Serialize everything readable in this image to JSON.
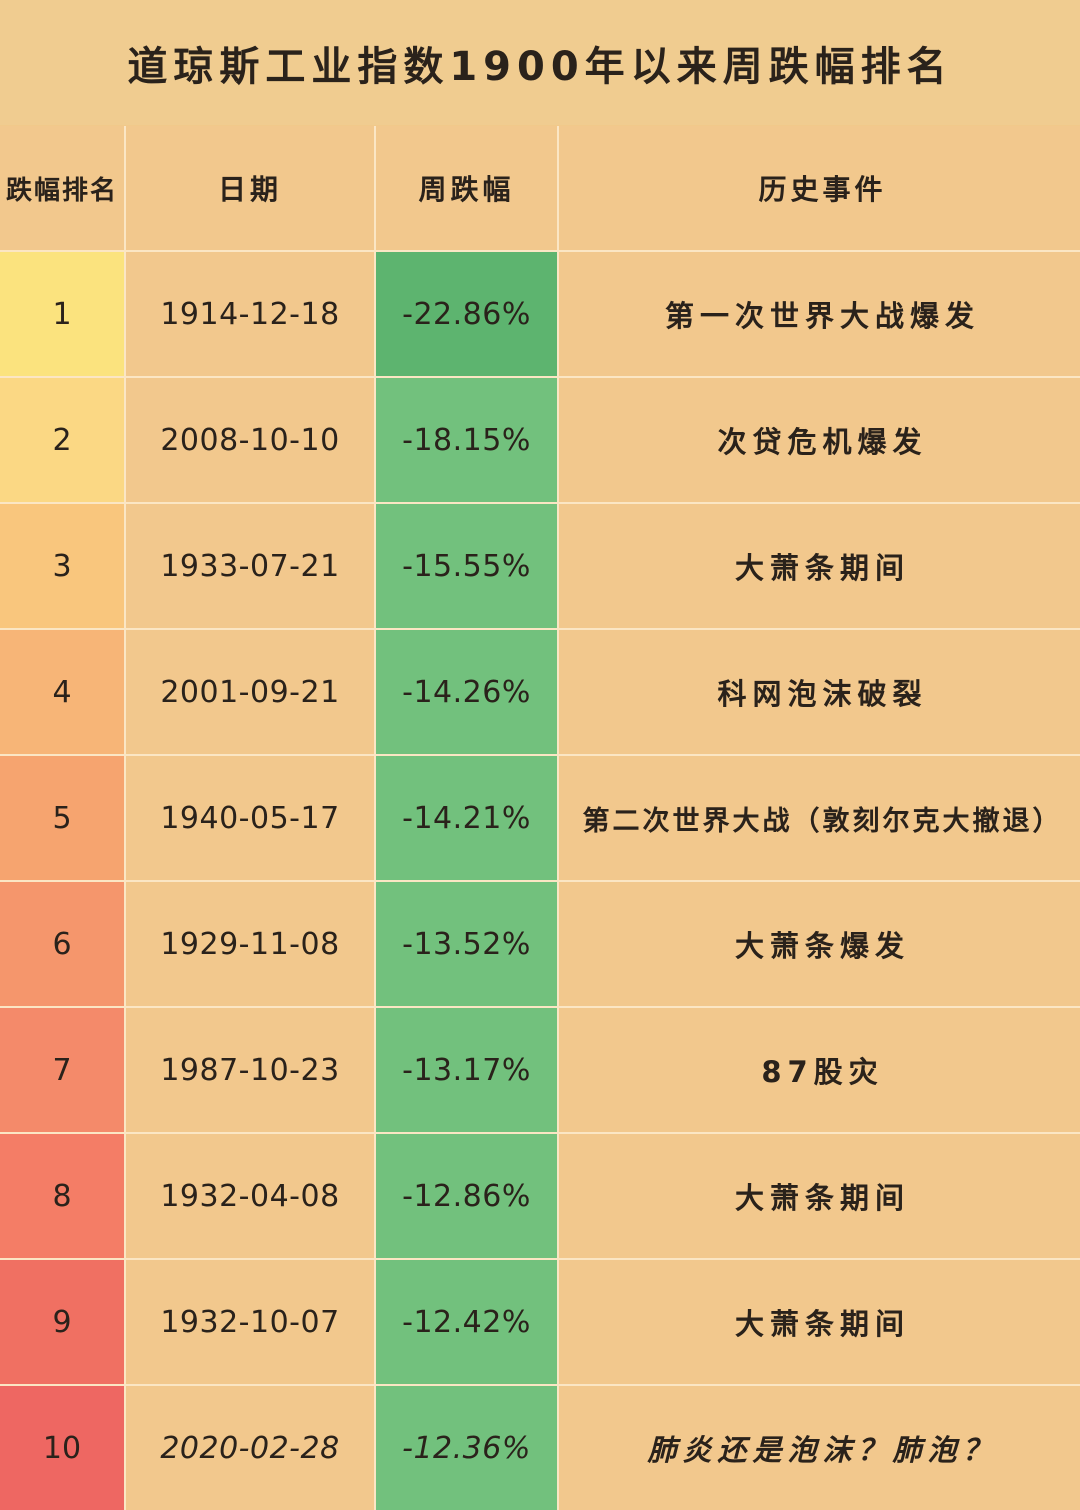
{
  "title": "道琼斯工业指数1900年以来周跌幅排名",
  "colors": {
    "background": "#f1c98a",
    "rank_gradient": [
      "#fbe37e",
      "#fbd884",
      "#f9c67d",
      "#f7b577",
      "#f6a46f",
      "#f5966c",
      "#f48a6a",
      "#f47d66",
      "#f07062",
      "#ee6762"
    ],
    "pct_green": "#72c17d",
    "pct_green_dark": "#5db46f",
    "grid_line": "#fbe6c4"
  },
  "chart_data": {
    "type": "table",
    "title": "道琼斯工业指数1900年以来周跌幅排名",
    "columns": [
      "跌幅排名",
      "日期",
      "周跌幅",
      "历史事件"
    ],
    "rows": [
      [
        "1",
        "1914-12-18",
        "-22.86%",
        "第一次世界大战爆发"
      ],
      [
        "2",
        "2008-10-10",
        "-18.15%",
        "次贷危机爆发"
      ],
      [
        "3",
        "1933-07-21",
        "-15.55%",
        "大萧条期间"
      ],
      [
        "4",
        "2001-09-21",
        "-14.26%",
        "科网泡沫破裂"
      ],
      [
        "5",
        "1940-05-17",
        "-14.21%",
        "第二次世界大战（敦刻尔克大撤退）"
      ],
      [
        "6",
        "1929-11-08",
        "-13.52%",
        "大萧条爆发"
      ],
      [
        "7",
        "1987-10-23",
        "-13.17%",
        "87股灾"
      ],
      [
        "8",
        "1932-04-08",
        "-12.86%",
        "大萧条期间"
      ],
      [
        "9",
        "1932-10-07",
        "-12.42%",
        "大萧条期间"
      ],
      [
        "10",
        "2020-02-28",
        "-12.36%",
        "肺炎还是泡沫？肺泡？"
      ]
    ]
  }
}
